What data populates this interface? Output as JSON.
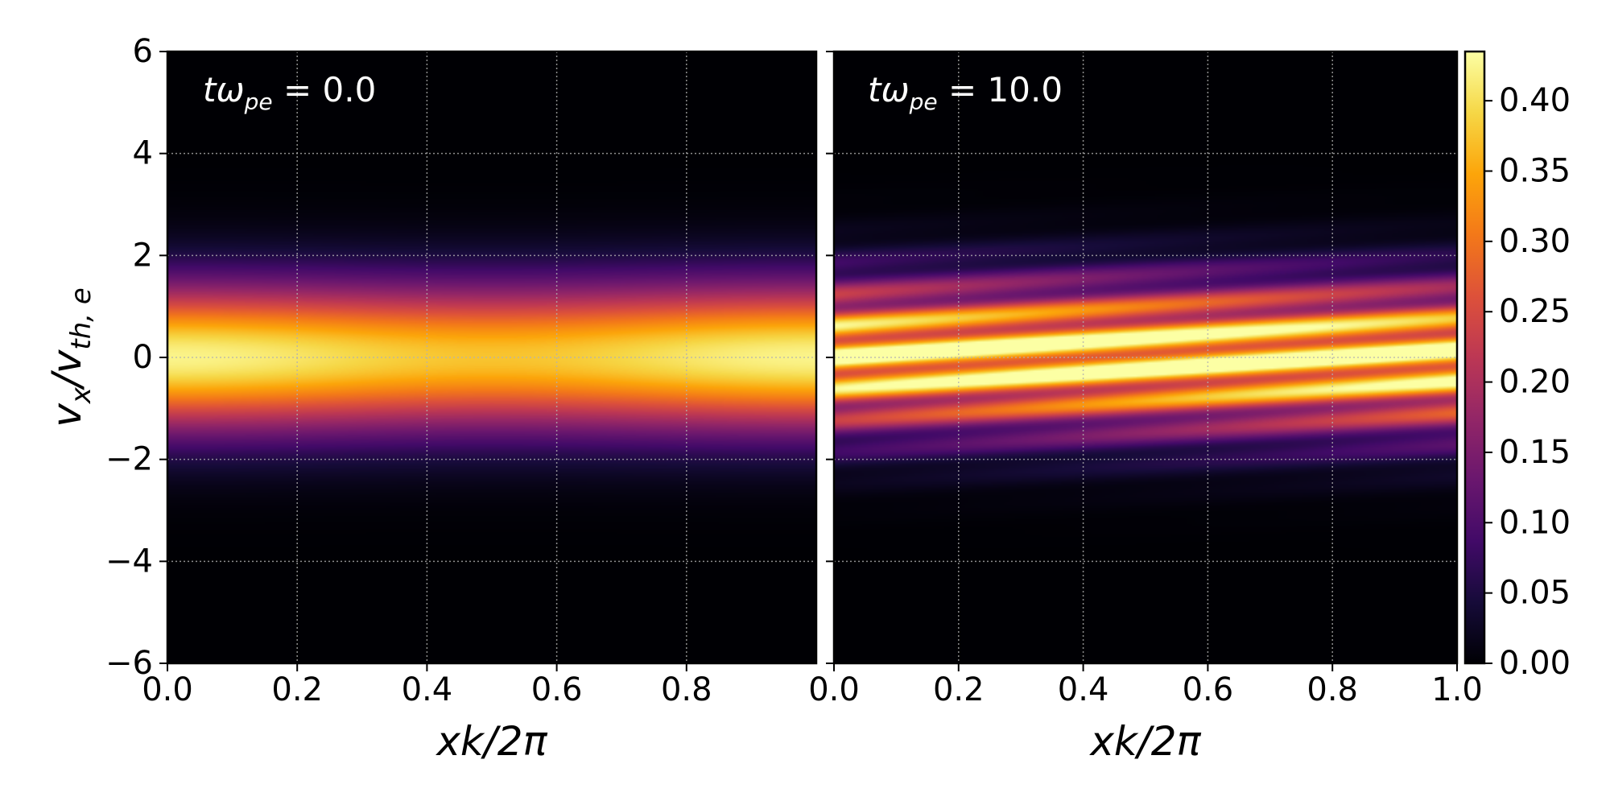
{
  "chart_data": [
    {
      "type": "heatmap",
      "panel": "left",
      "annotation": {
        "main": "tω",
        "sub": "pe",
        "rest": " = 0.0"
      },
      "time": 0.0,
      "xlabel": "xk/2π",
      "ylabel": "v_x/v_th,e",
      "xlim": [
        0.0,
        1.0
      ],
      "ylim": [
        -6,
        6
      ],
      "xticks": [
        0.0,
        0.2,
        0.4,
        0.6,
        0.8
      ],
      "xtick_labels": [
        "0.0",
        "0.2",
        "0.4",
        "0.6",
        "0.8"
      ],
      "yticks": [
        -6,
        -4,
        -2,
        0,
        2,
        4,
        6
      ],
      "ytick_labels": [
        "−6",
        "−4",
        "−2",
        "0",
        "2",
        "4",
        "6"
      ],
      "grid": true,
      "peak_value": 0.43,
      "description_value": "Maxwellian-like band centered at v=0 with peak ~0.43, slightly weaker near x=0.5"
    },
    {
      "type": "heatmap",
      "panel": "right",
      "annotation": {
        "main": "tω",
        "sub": "pe",
        "rest": " = 10.0"
      },
      "time": 10.0,
      "xlabel": "xk/2π",
      "xlim": [
        0.0,
        1.0
      ],
      "ylim": [
        -6,
        6
      ],
      "xticks": [
        0.0,
        0.2,
        0.4,
        0.6,
        0.8,
        1.0
      ],
      "xtick_labels": [
        "0.0",
        "0.2",
        "0.4",
        "0.6",
        "0.8",
        "1.0"
      ],
      "grid": true,
      "peak_value": 0.43,
      "tilt_per_unit_x": 0.8
    }
  ],
  "colorbar": {
    "min": 0.0,
    "max": 0.435,
    "ticks": [
      0.0,
      0.05,
      0.1,
      0.15,
      0.2,
      0.25,
      0.3,
      0.35,
      0.4
    ],
    "tick_labels": [
      "0.00",
      "0.05",
      "0.10",
      "0.15",
      "0.20",
      "0.25",
      "0.30",
      "0.35",
      "0.40"
    ],
    "colormap": "inferno"
  },
  "labels": {
    "xlabel_left": "xk/2π",
    "xlabel_right": "xk/2π",
    "ylabel_main": "v",
    "ylabel_sub1": "x",
    "ylabel_mid": "/v",
    "ylabel_sub2": "th, e"
  }
}
